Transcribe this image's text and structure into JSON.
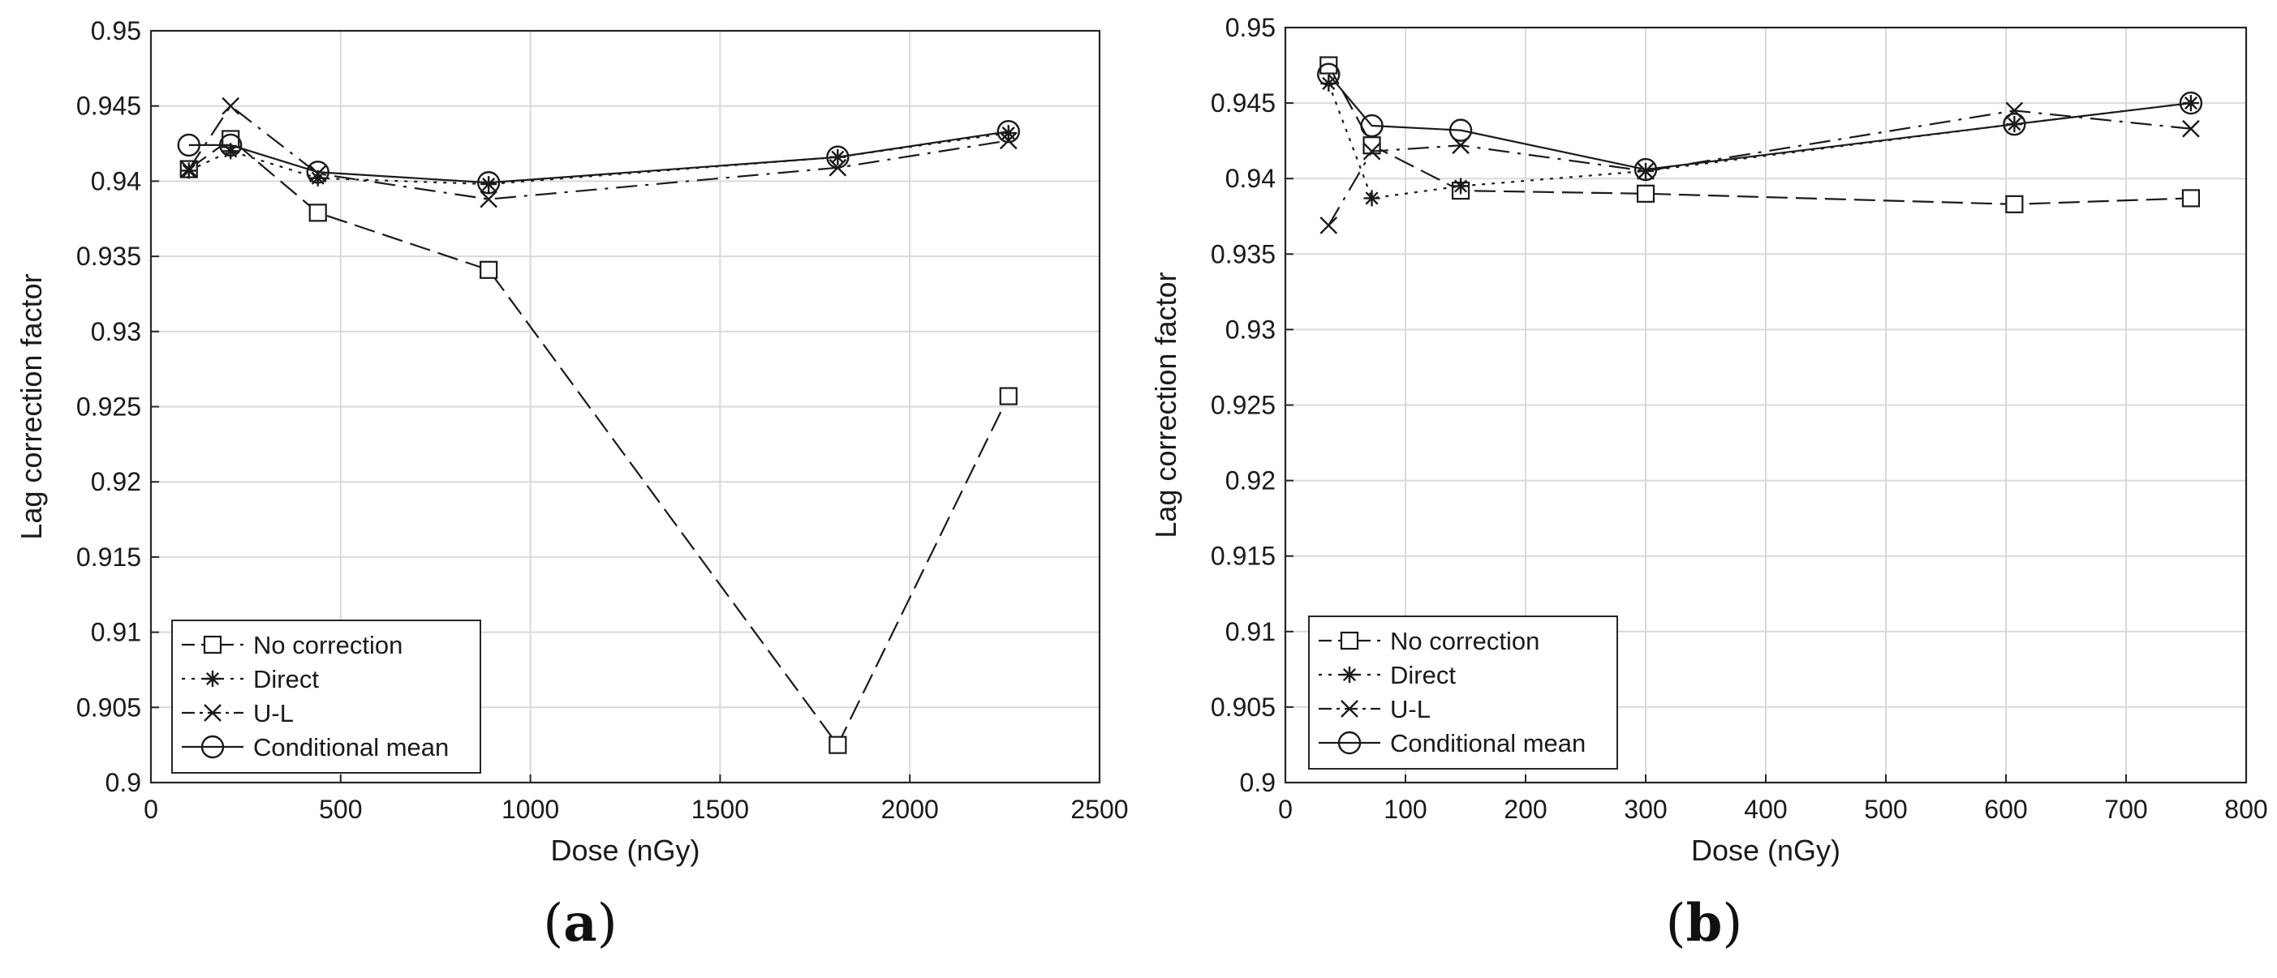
{
  "chart_data": [
    {
      "type": "line",
      "panel_label": "(a)",
      "xlabel": "Dose (nGy)",
      "ylabel": "Lag correction factor",
      "xlim": [
        0,
        2500
      ],
      "ylim": [
        0.9,
        0.95
      ],
      "xticks": [
        "0",
        "500",
        "1000",
        "1500",
        "2000",
        "2500"
      ],
      "yticks": [
        "0.9",
        "0.905",
        "0.91",
        "0.915",
        "0.92",
        "0.925",
        "0.93",
        "0.935",
        "0.94",
        "0.945",
        "0.95"
      ],
      "grid": true,
      "legend_position": "bottom-left",
      "series": [
        {
          "name": "No correction",
          "x": [
            100,
            210,
            440,
            890,
            1810,
            2260
          ],
          "values": [
            0.9408,
            0.9428,
            0.9379,
            0.9341,
            0.9025,
            0.9257
          ]
        },
        {
          "name": "Direct",
          "x": [
            100,
            210,
            440,
            890,
            1810,
            2260
          ],
          "values": [
            0.9407,
            0.942,
            0.9402,
            0.9398,
            0.9416,
            0.9432
          ]
        },
        {
          "name": "U-L",
          "x": [
            100,
            210,
            440,
            890,
            1810,
            2260
          ],
          "values": [
            0.9408,
            0.945,
            0.9405,
            0.9388,
            0.9409,
            0.9427
          ]
        },
        {
          "name": "Conditional mean",
          "x": [
            100,
            210,
            440,
            890,
            1810,
            2260
          ],
          "values": [
            0.9424,
            0.9424,
            0.9406,
            0.9399,
            0.9416,
            0.9433
          ]
        }
      ]
    },
    {
      "type": "line",
      "panel_label": "(b)",
      "xlabel": "Dose (nGy)",
      "ylabel": "Lag correction factor",
      "xlim": [
        0,
        800
      ],
      "ylim": [
        0.9,
        0.95
      ],
      "xticks": [
        "0",
        "100",
        "200",
        "300",
        "400",
        "500",
        "600",
        "700",
        "800"
      ],
      "yticks": [
        "0.9",
        "0.905",
        "0.91",
        "0.915",
        "0.92",
        "0.925",
        "0.93",
        "0.935",
        "0.94",
        "0.945",
        "0.95"
      ],
      "grid": true,
      "legend_position": "bottom-left",
      "series": [
        {
          "name": "No correction",
          "x": [
            36,
            72,
            146,
            300,
            607,
            754
          ],
          "values": [
            0.9475,
            0.9422,
            0.9392,
            0.939,
            0.9383,
            0.9387
          ]
        },
        {
          "name": "Direct",
          "x": [
            36,
            72,
            146,
            300,
            607,
            754
          ],
          "values": [
            0.9463,
            0.9387,
            0.9395,
            0.9405,
            0.9436,
            0.945
          ]
        },
        {
          "name": "U-L",
          "x": [
            36,
            72,
            146,
            300,
            607,
            754
          ],
          "values": [
            0.9369,
            0.9418,
            0.9422,
            0.9405,
            0.9445,
            0.9433
          ]
        },
        {
          "name": "Conditional mean",
          "x": [
            36,
            72,
            146,
            300,
            607,
            754
          ],
          "values": [
            0.9469,
            0.9435,
            0.9432,
            0.9406,
            0.9436,
            0.945
          ]
        }
      ]
    }
  ],
  "colors": {
    "ink": "#1a1a1a",
    "grid": "#d9d9d9",
    "axes": "#262626"
  },
  "marker_icons": [
    "square-marker",
    "asterisk-marker",
    "x-marker",
    "circle-marker"
  ]
}
